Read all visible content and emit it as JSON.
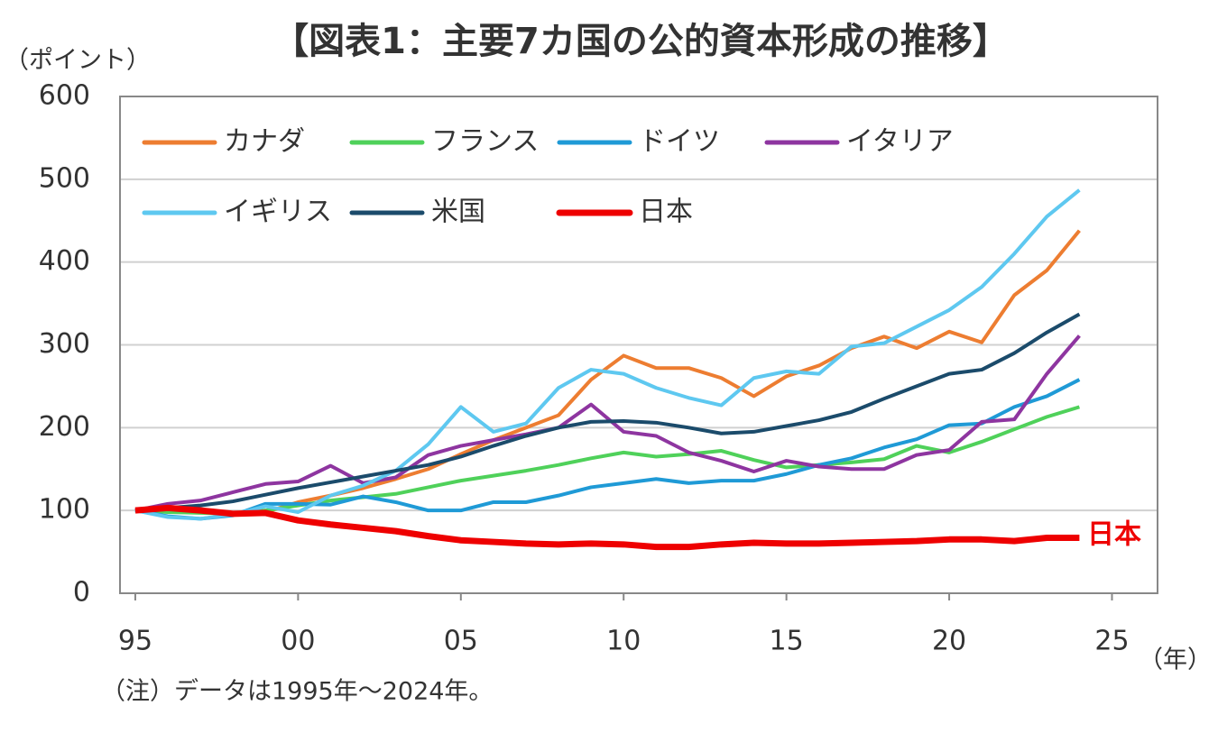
{
  "chart_data": {
    "type": "line",
    "title": "【図表1：主要7カ国の公的資本形成の推移】",
    "y_label": "（ポイント）",
    "x_label": "（年）",
    "note": "（注）データは1995年～2024年。",
    "annotation": "日本",
    "x": [
      1995,
      1996,
      1997,
      1998,
      1999,
      2000,
      2001,
      2002,
      2003,
      2004,
      2005,
      2006,
      2007,
      2008,
      2009,
      2010,
      2011,
      2012,
      2013,
      2014,
      2015,
      2016,
      2017,
      2018,
      2019,
      2020,
      2021,
      2022,
      2023,
      2024
    ],
    "series": [
      {
        "name": "カナダ",
        "color": "#ed7d31",
        "values": [
          100,
          103,
          100,
          96,
          98,
          110,
          118,
          127,
          138,
          150,
          168,
          185,
          200,
          215,
          258,
          287,
          272,
          272,
          260,
          238,
          262,
          275,
          296,
          310,
          296,
          316,
          303,
          360,
          390,
          438
        ]
      },
      {
        "name": "フランス",
        "color": "#4fd15a",
        "values": [
          100,
          98,
          97,
          96,
          100,
          106,
          112,
          116,
          120,
          128,
          136,
          142,
          148,
          155,
          163,
          170,
          165,
          168,
          172,
          161,
          152,
          155,
          158,
          162,
          178,
          170,
          183,
          198,
          213,
          225
        ]
      },
      {
        "name": "ドイツ",
        "color": "#1f9ad6",
        "values": [
          100,
          93,
          90,
          94,
          108,
          108,
          107,
          117,
          110,
          100,
          100,
          110,
          110,
          118,
          128,
          133,
          138,
          133,
          136,
          136,
          144,
          155,
          163,
          176,
          186,
          203,
          205,
          225,
          238,
          258
        ]
      },
      {
        "name": "イタリア",
        "color": "#8e35a0",
        "values": [
          100,
          108,
          112,
          122,
          132,
          135,
          154,
          133,
          140,
          167,
          178,
          185,
          192,
          200,
          228,
          195,
          190,
          170,
          160,
          147,
          160,
          153,
          150,
          150,
          167,
          173,
          207,
          210,
          265,
          311
        ]
      },
      {
        "name": "イギリス",
        "color": "#5ec8f0",
        "values": [
          100,
          92,
          90,
          95,
          105,
          98,
          118,
          130,
          148,
          180,
          225,
          195,
          205,
          248,
          270,
          265,
          248,
          236,
          227,
          260,
          268,
          265,
          298,
          302,
          322,
          342,
          370,
          410,
          455,
          487
        ]
      },
      {
        "name": "米国",
        "color": "#1b4b6b",
        "values": [
          100,
          103,
          106,
          111,
          119,
          127,
          134,
          141,
          148,
          155,
          165,
          178,
          190,
          200,
          207,
          208,
          206,
          200,
          193,
          195,
          202,
          209,
          219,
          235,
          250,
          265,
          270,
          290,
          315,
          337
        ]
      },
      {
        "name": "日本",
        "color": "#ee0000",
        "values": [
          100,
          103,
          100,
          96,
          97,
          88,
          83,
          79,
          75,
          69,
          64,
          62,
          60,
          59,
          60,
          59,
          56,
          56,
          59,
          61,
          60,
          60,
          61,
          62,
          63,
          65,
          65,
          63,
          67,
          67
        ]
      }
    ],
    "xlim": [
      1994.53,
      2026.4
    ],
    "xticks": [
      {
        "value": 1995,
        "label": "95"
      },
      {
        "value": 2000,
        "label": "00"
      },
      {
        "value": 2005,
        "label": "05"
      },
      {
        "value": 2010,
        "label": "10"
      },
      {
        "value": 2015,
        "label": "15"
      },
      {
        "value": 2020,
        "label": "20"
      },
      {
        "value": 2025,
        "label": "25"
      }
    ],
    "ylim": [
      0,
      600
    ],
    "yticks": [
      0,
      100,
      200,
      300,
      400,
      500,
      600
    ],
    "grid": true
  }
}
